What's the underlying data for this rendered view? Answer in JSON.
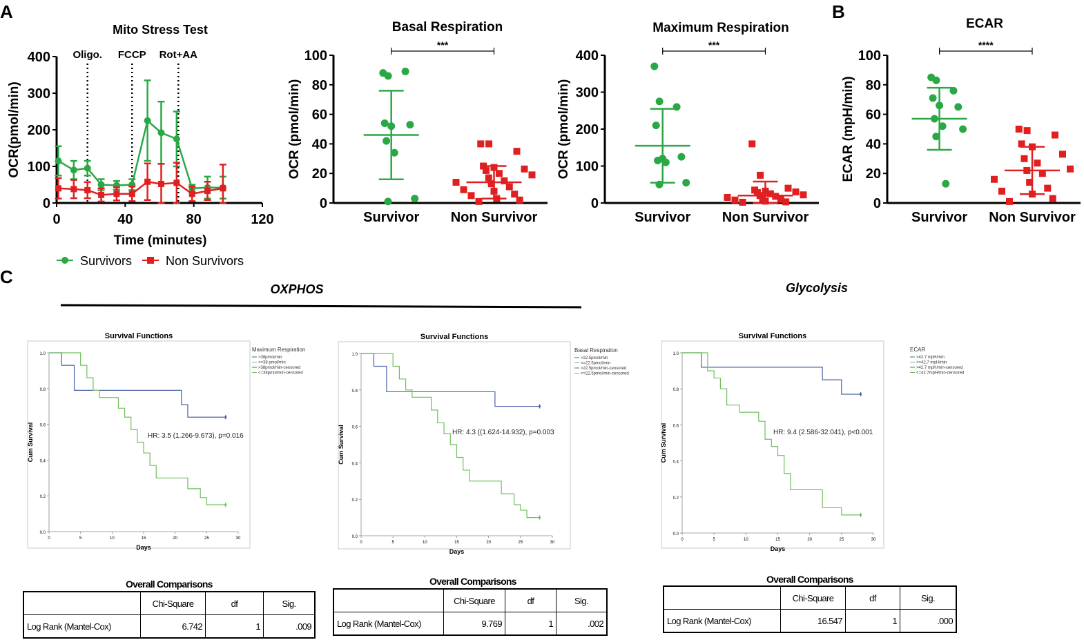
{
  "panel_letters": {
    "a": "A",
    "b": "B",
    "c": "C"
  },
  "section_titles": {
    "oxphos": "OXPHOS",
    "glycolysis": "Glycolysis"
  },
  "legend": {
    "survivors": "Survivors",
    "non_survivors": "Non Survivors"
  },
  "colors": {
    "survivor": "#2aa845",
    "non_survivor": "#e02020",
    "km_high": "#4a63a8",
    "km_low": "#6fbf5c"
  },
  "chart_data": [
    {
      "id": "mito",
      "type": "line",
      "title": "Mito Stress Test",
      "xlabel": "Time (minutes)",
      "ylabel": "OCR(pmol/min)",
      "xlim": [
        0,
        120
      ],
      "ylim": [
        0,
        400
      ],
      "xticks": [
        0,
        40,
        80,
        120
      ],
      "yticks": [
        0,
        100,
        200,
        300,
        400
      ],
      "injections": [
        {
          "label": "Oligo.",
          "x": 18
        },
        {
          "label": "FCCP",
          "x": 44
        },
        {
          "label": "Rot+AA",
          "x": 71
        }
      ],
      "series": [
        {
          "name": "Survivors",
          "x": [
            1,
            10,
            18,
            26,
            35,
            44,
            53,
            61,
            70,
            79,
            88,
            97
          ],
          "y": [
            115,
            90,
            95,
            50,
            48,
            50,
            225,
            192,
            175,
            40,
            42,
            42
          ],
          "err": [
            40,
            25,
            20,
            15,
            12,
            15,
            110,
            85,
            75,
            10,
            30,
            30
          ]
        },
        {
          "name": "Non Survivors",
          "x": [
            1,
            10,
            18,
            26,
            35,
            44,
            53,
            61,
            70,
            79,
            88,
            97
          ],
          "y": [
            40,
            38,
            35,
            22,
            25,
            25,
            58,
            52,
            55,
            25,
            33,
            40
          ],
          "err": [
            28,
            25,
            22,
            18,
            18,
            20,
            50,
            55,
            55,
            20,
            25,
            65
          ]
        }
      ]
    },
    {
      "id": "basal",
      "type": "scatter",
      "title": "Basal Respiration",
      "ylabel": "OCR (pmol/min)",
      "categories": [
        "Survivor",
        "Non Survivor"
      ],
      "ylim": [
        0,
        100
      ],
      "yticks": [
        0,
        20,
        40,
        60,
        80,
        100
      ],
      "significance": "***",
      "groups": [
        {
          "name": "Survivor",
          "mean": 46,
          "sd": 30,
          "points": [
            88,
            86,
            89,
            54,
            52,
            53,
            42,
            34,
            3,
            1
          ]
        },
        {
          "name": "Non Survivor",
          "mean": 14,
          "sd": 11,
          "points": [
            40,
            40,
            35,
            25,
            24,
            23,
            22,
            20,
            19,
            17,
            15,
            14,
            13,
            11,
            9,
            8,
            6,
            5,
            3,
            2,
            1
          ]
        }
      ]
    },
    {
      "id": "maxresp",
      "type": "scatter",
      "title": "Maximum Respiration",
      "ylabel": "OCR (pmol/min)",
      "categories": [
        "Survivor",
        "Non Survivor"
      ],
      "ylim": [
        0,
        400
      ],
      "yticks": [
        0,
        100,
        200,
        300,
        400
      ],
      "significance": "***",
      "groups": [
        {
          "name": "Survivor",
          "mean": 155,
          "sd": 100,
          "points": [
            370,
            275,
            260,
            210,
            120,
            125,
            115,
            110,
            55,
            50
          ]
        },
        {
          "name": "Non Survivor",
          "mean": 20,
          "sd": 38,
          "points": [
            160,
            75,
            40,
            35,
            32,
            30,
            28,
            25,
            22,
            20,
            18,
            15,
            12,
            10,
            8,
            5,
            3,
            2
          ]
        }
      ]
    },
    {
      "id": "ecar",
      "type": "scatter",
      "title": "ECAR",
      "ylabel": "ECAR (mpH/min)",
      "categories": [
        "Survivor",
        "Non Survivor"
      ],
      "ylim": [
        0,
        100
      ],
      "yticks": [
        0,
        20,
        40,
        60,
        80,
        100
      ],
      "significance": "****",
      "groups": [
        {
          "name": "Survivor",
          "mean": 57,
          "sd": 21,
          "points": [
            85,
            83,
            76,
            71,
            66,
            65,
            57,
            52,
            50,
            45,
            13
          ]
        },
        {
          "name": "Non Survivor",
          "mean": 22,
          "sd": 16,
          "points": [
            50,
            49,
            46,
            40,
            38,
            33,
            30,
            27,
            23,
            22,
            20,
            16,
            14,
            10,
            8,
            6,
            3,
            1
          ]
        }
      ]
    },
    {
      "id": "km_max",
      "type": "line",
      "title": "Survival Functions",
      "xlabel": "Days",
      "ylabel": "Cum Survival",
      "xlim": [
        0,
        30
      ],
      "ylim": [
        0,
        1
      ],
      "xticks": [
        0,
        5,
        10,
        15,
        20,
        25,
        30
      ],
      "yticks": [
        "0.0",
        "0.2",
        "0.4",
        "0.6",
        "0.8",
        "1.0"
      ],
      "legend_title": "Maximum Respiration",
      "legend_entries": [
        ">38pmol/min",
        "<=38 pmol/min",
        ">38pmol/min-censored",
        "<=38pmol/min-censored"
      ],
      "annotation": "HR: 3.5 (1.266-9.673), p=0.016",
      "series": [
        {
          "name": ">38pmol/min",
          "end": 28,
          "steps": [
            [
              2,
              0.93
            ],
            [
              4,
              0.79
            ],
            [
              21,
              0.71
            ],
            [
              22,
              0.64
            ]
          ]
        },
        {
          "name": "<=38 pmol/min",
          "end": 28,
          "steps": [
            [
              5,
              0.93
            ],
            [
              6,
              0.86
            ],
            [
              7,
              0.79
            ],
            [
              8,
              0.75
            ],
            [
              11,
              0.69
            ],
            [
              12,
              0.64
            ],
            [
              13,
              0.57
            ],
            [
              14,
              0.5
            ],
            [
              15,
              0.44
            ],
            [
              16,
              0.37
            ],
            [
              17,
              0.3
            ],
            [
              22,
              0.24
            ],
            [
              24,
              0.19
            ],
            [
              25,
              0.15
            ]
          ]
        }
      ]
    },
    {
      "id": "km_basal",
      "type": "line",
      "title": "Survival Functions",
      "xlabel": "Days",
      "ylabel": "Cum Survival",
      "xlim": [
        0,
        30
      ],
      "ylim": [
        0,
        1
      ],
      "xticks": [
        0,
        5,
        10,
        15,
        20,
        25,
        30
      ],
      "yticks": [
        "0.0",
        "0.2",
        "0.4",
        "0.6",
        "0.8",
        "1.0"
      ],
      "legend_title": "Basal Respiration",
      "legend_entries": [
        ">22.5pmol/min",
        "<=22.5pmol/min",
        ">22.5pmol/min-censored",
        "<=22.5pmol/min-censored"
      ],
      "annotation": "HR: 4.3 ((1.624-14.932), p=0.003",
      "series": [
        {
          "name": ">22.5pmol/min",
          "end": 28,
          "steps": [
            [
              2,
              0.93
            ],
            [
              4,
              0.79
            ],
            [
              21,
              0.71
            ]
          ]
        },
        {
          "name": "<=22.5pmol/min",
          "end": 28,
          "steps": [
            [
              5,
              0.93
            ],
            [
              6,
              0.86
            ],
            [
              7,
              0.8
            ],
            [
              8,
              0.76
            ],
            [
              11,
              0.69
            ],
            [
              12,
              0.62
            ],
            [
              13,
              0.56
            ],
            [
              14,
              0.5
            ],
            [
              15,
              0.43
            ],
            [
              16,
              0.36
            ],
            [
              17,
              0.3
            ],
            [
              22,
              0.23
            ],
            [
              24,
              0.17
            ],
            [
              25,
              0.14
            ],
            [
              26,
              0.1
            ]
          ]
        }
      ]
    },
    {
      "id": "km_ecar",
      "type": "line",
      "title": "Survival Functions",
      "xlabel": "Days",
      "ylabel": "Cum Survival",
      "xlim": [
        0,
        30
      ],
      "ylim": [
        0,
        1
      ],
      "xticks": [
        0,
        5,
        10,
        15,
        20,
        25,
        30
      ],
      "yticks": [
        "0.0",
        "0.2",
        "0.4",
        "0.6",
        "0.8",
        "1.0"
      ],
      "legend_title": "ECAR",
      "legend_entries": [
        ">42.7 mpH/min",
        "<=42.7 mpH/min",
        ">42.7 mpH/min-censored",
        "<=42.7mpH/min-censored"
      ],
      "annotation": "HR: 9.4 (2.586-32.041), p<0.001",
      "series": [
        {
          "name": ">42.7 mpH/min",
          "end": 28,
          "steps": [
            [
              3,
              0.92
            ],
            [
              22,
              0.85
            ],
            [
              25,
              0.77
            ]
          ]
        },
        {
          "name": "<=42.7 mpH/min",
          "end": 28,
          "steps": [
            [
              4,
              0.9
            ],
            [
              5,
              0.86
            ],
            [
              6,
              0.8
            ],
            [
              7,
              0.71
            ],
            [
              9,
              0.67
            ],
            [
              12,
              0.62
            ],
            [
              13,
              0.52
            ],
            [
              14,
              0.48
            ],
            [
              15,
              0.43
            ],
            [
              16,
              0.33
            ],
            [
              17,
              0.24
            ],
            [
              22,
              0.14
            ],
            [
              25,
              0.1
            ]
          ]
        }
      ]
    }
  ],
  "tables": [
    {
      "title": "Overall Comparisons",
      "headers": [
        "",
        "Chi-Square",
        "df",
        "Sig."
      ],
      "row": [
        "Log Rank (Mantel-Cox)",
        "6.742",
        "1",
        ".009"
      ]
    },
    {
      "title": "Overall Comparisons",
      "headers": [
        "",
        "Chi-Square",
        "df",
        "Sig."
      ],
      "row": [
        "Log Rank (Mantel-Cox)",
        "9.769",
        "1",
        ".002"
      ]
    },
    {
      "title": "Overall Comparisons",
      "headers": [
        "",
        "Chi-Square",
        "df",
        "Sig."
      ],
      "row": [
        "Log Rank (Mantel-Cox)",
        "16.547",
        "1",
        ".000"
      ]
    }
  ]
}
